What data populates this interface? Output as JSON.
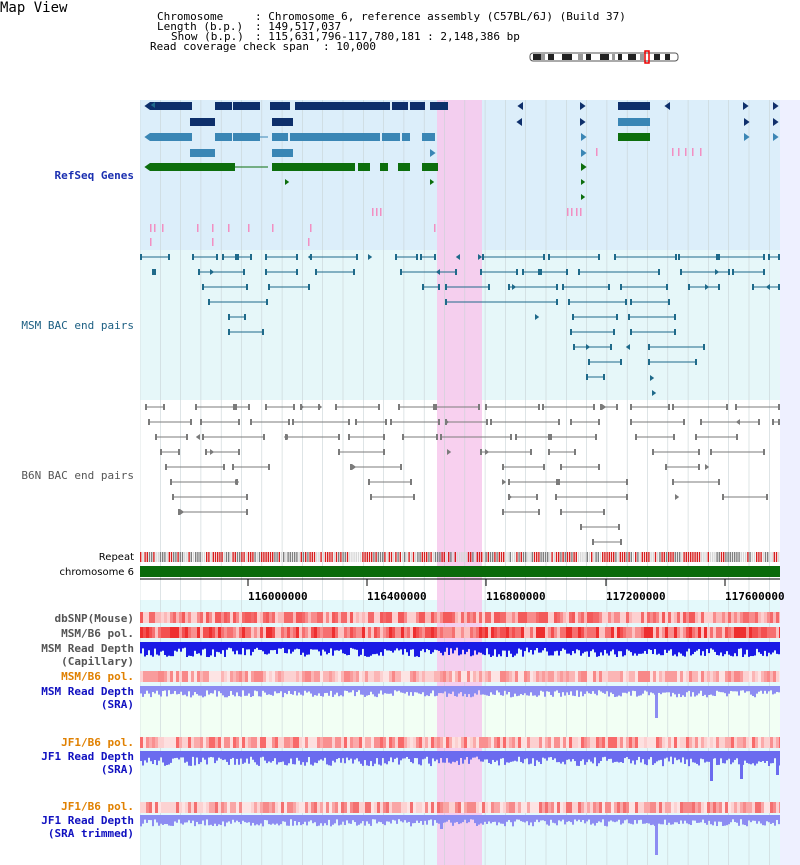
{
  "app_title": "Map View",
  "header": {
    "chromosome_key": "Chromosome",
    "chromosome_val": ": Chromosome 6, reference assembly (C57BL/6J) (Build 37)",
    "length_key": "Length (b.p.)",
    "length_val": ": 149,517,037",
    "show_key": "Show (b.p.)",
    "show_val": ": 115,631,796-117,780,181 : 2,148,386 bp",
    "coverage_key": "Read coverage check span",
    "coverage_val": ": 10,000"
  },
  "tracks": {
    "refseq": "RefSeq Genes",
    "msm_bac": "MSM BAC end pairs",
    "b6n_bac": "B6N BAC end pairs",
    "repeat": "Repeat",
    "chromosome": "chromosome 6",
    "dbsnp": "dbSNP(Mouse)",
    "msm_b6_pol_1": "MSM/B6 pol.",
    "msm_read_depth_cap_1": "MSM Read Depth",
    "msm_read_depth_cap_2": "(Capillary)",
    "msm_b6_pol_2": "MSM/B6 pol.",
    "msm_read_depth_sra_1": "MSM Read Depth",
    "msm_read_depth_sra_2": "(SRA)",
    "jf1_b6_pol_1": "JF1/B6 pol.",
    "jf1_read_depth_sra_1": "JF1 Read Depth",
    "jf1_read_depth_sra_2": "(SRA)",
    "jf1_b6_pol_2": "JF1/B6 pol.",
    "jf1_read_depth_trim_1": "JF1 Read Depth",
    "jf1_read_depth_trim_2": "(SRA trimmed)"
  },
  "axis_ticks": [
    "116000000",
    "116400000",
    "116800000",
    "117200000",
    "117600000"
  ],
  "colors": {
    "refseq_bg": "#dceefa",
    "teal_bg": "#e6f7f9",
    "highlight": "#f7c8ec",
    "chromosome": "#0a6a0a",
    "navy_gene": "#0e2f6b",
    "steel_gene": "#3a86b5",
    "green_gene": "#0d6e0d",
    "pink_gene": "#f28fc2"
  }
}
